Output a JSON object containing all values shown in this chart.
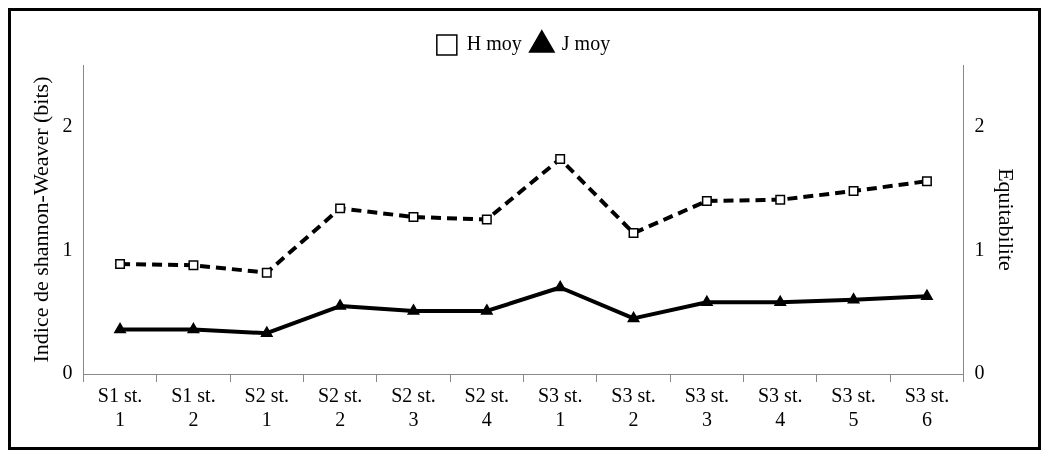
{
  "chart_data": {
    "type": "line",
    "ylabel": "Indice de shannon-Weaver (bits)",
    "y2label": "Equitabilite",
    "categories": [
      "S1 st. 1",
      "S1 st. 2",
      "S2 st. 1",
      "S2 st. 2",
      "S2 st. 3",
      "S2 st. 4",
      "S3 st. 1",
      "S3 st. 2",
      "S3 st. 3",
      "S3 st. 4",
      "S3 st. 5",
      "S3 st. 6"
    ],
    "series": [
      {
        "name": "H moy",
        "color": "#000000",
        "marker": "square",
        "line_style": "dashed",
        "values": [
          0.89,
          0.88,
          0.82,
          1.34,
          1.27,
          1.25,
          1.74,
          1.14,
          1.4,
          1.41,
          1.48,
          1.56
        ]
      },
      {
        "name": "J moy",
        "color": "#000000",
        "marker": "triangle",
        "line_style": "solid",
        "axis": "y2",
        "values": [
          0.36,
          0.36,
          0.33,
          0.55,
          0.51,
          0.51,
          0.7,
          0.45,
          0.58,
          0.58,
          0.6,
          0.63
        ]
      }
    ],
    "ylim": [
      0,
      2.5
    ],
    "yticks": [
      0,
      1,
      2
    ],
    "y2lim": [
      0,
      2.5
    ],
    "y2ticks": [
      0,
      1,
      2
    ],
    "legend": "top",
    "grid": false
  }
}
